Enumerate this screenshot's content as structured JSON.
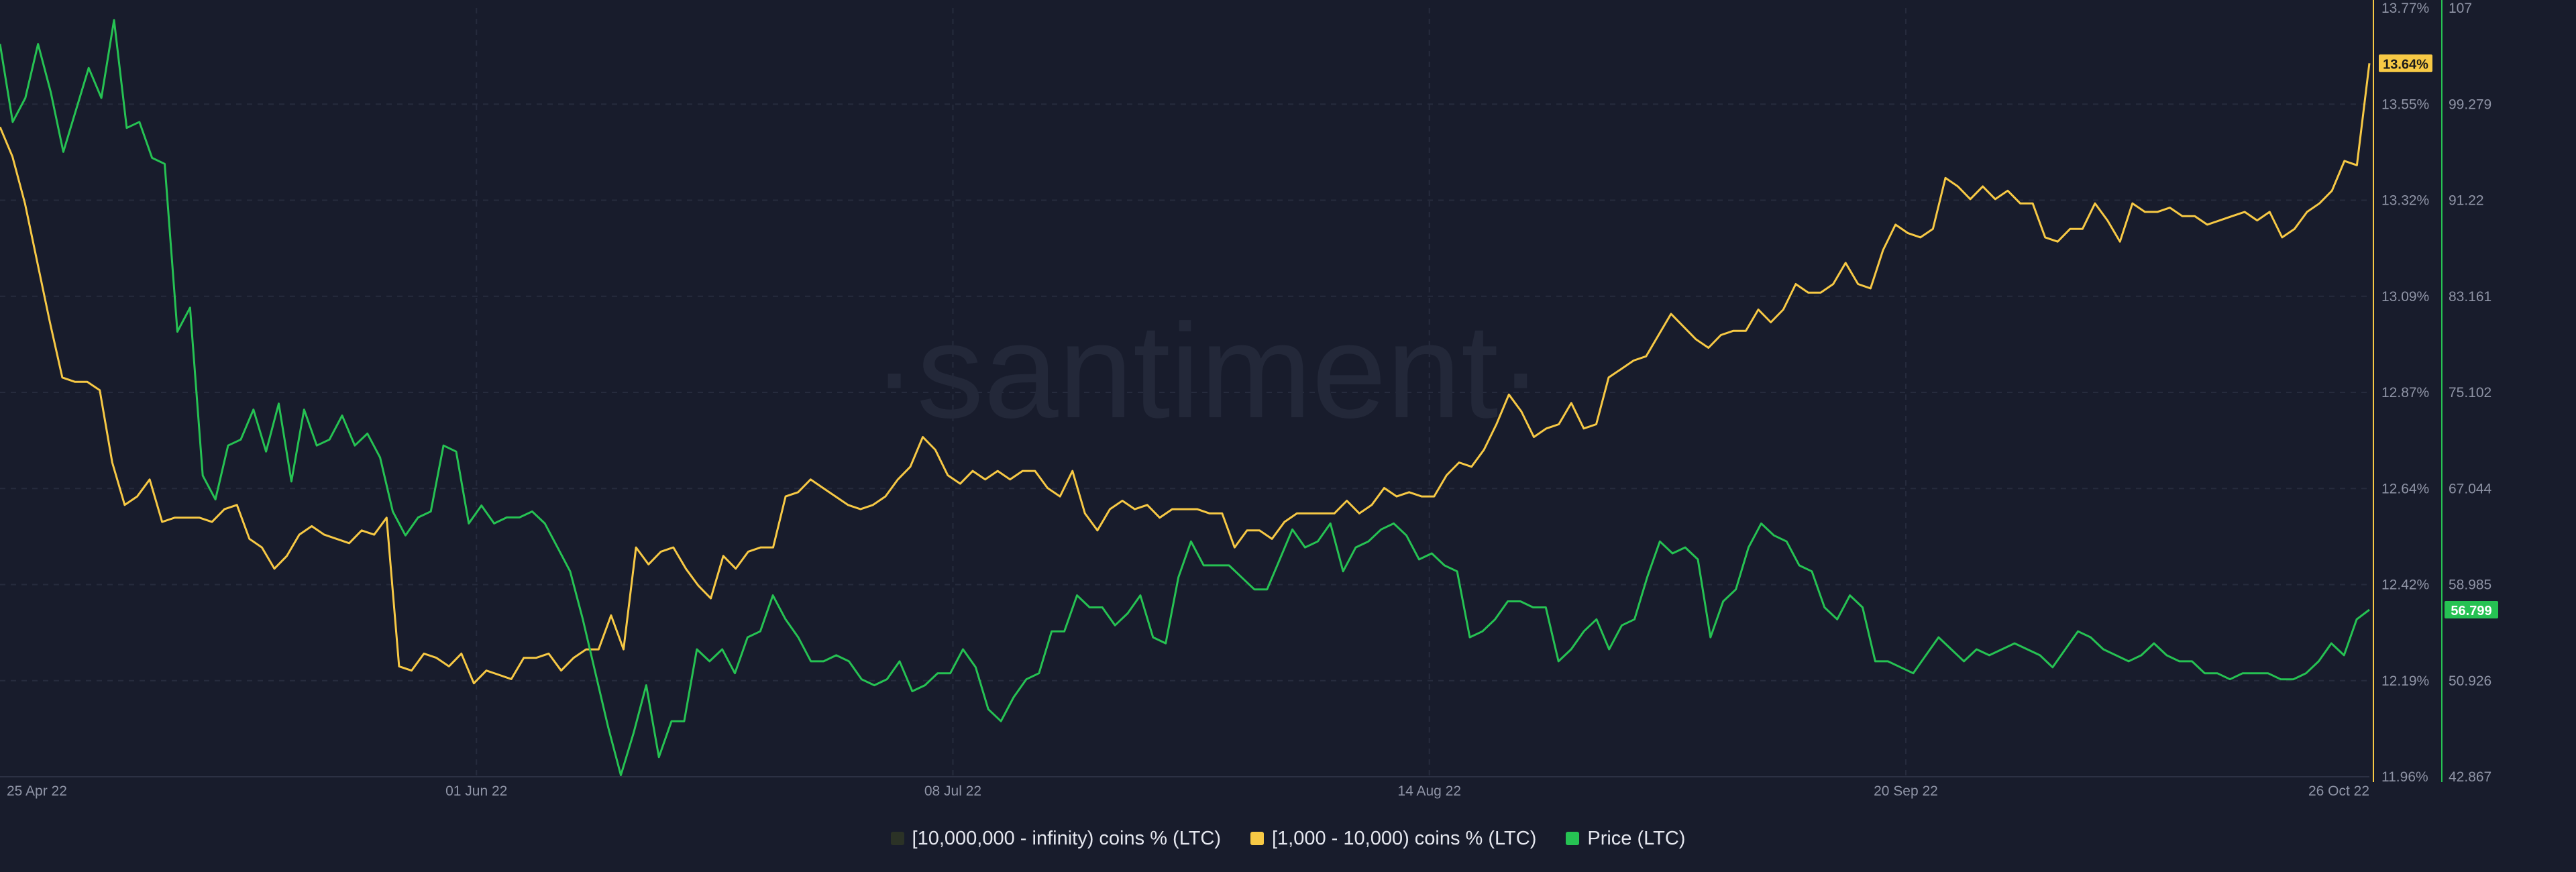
{
  "watermark": "·santiment·",
  "legend": [
    {
      "label": "[10,000,000 - infinity) coins % (LTC)",
      "color": "#2b3226"
    },
    {
      "label": "[1,000 - 10,000) coins % (LTC)",
      "color": "#f7c945"
    },
    {
      "label": "Price (LTC)",
      "color": "#26c253"
    }
  ],
  "chart_data": {
    "type": "line",
    "x_range": [
      "2022-04-25",
      "2022-10-26"
    ],
    "x_ticks": [
      {
        "date": "2022-04-25",
        "label": "25 Apr 22"
      },
      {
        "date": "2022-06-01",
        "label": "01 Jun 22"
      },
      {
        "date": "2022-07-08",
        "label": "08 Jul 22"
      },
      {
        "date": "2022-08-14",
        "label": "14 Aug 22"
      },
      {
        "date": "2022-09-20",
        "label": "20 Sep 22"
      },
      {
        "date": "2022-10-26",
        "label": "26 Oct 22"
      }
    ],
    "y_left": {
      "range": [
        11.96,
        13.77
      ],
      "ticks": [
        "13.77%",
        "13.55%",
        "13.32%",
        "13.09%",
        "12.87%",
        "12.64%",
        "12.42%",
        "12.19%",
        "11.96%"
      ],
      "current_label": "13.64%",
      "current_value": 13.64,
      "color": "#f7c945"
    },
    "y_right": {
      "range": [
        42.867,
        107
      ],
      "ticks": [
        "107",
        "99.279",
        "91.22",
        "83.161",
        "75.102",
        "67.044",
        "58.985",
        "50.926",
        "42.867"
      ],
      "current_label": "56.799",
      "current_value": 56.799,
      "color": "#26c253"
    },
    "grid": true,
    "series": [
      {
        "name": "[1,000 - 10,000) coins % (LTC)",
        "axis": "left",
        "color": "#f7c945",
        "x_start": "2022-04-25",
        "x_end": "2022-10-26",
        "values": [
          13.49,
          13.42,
          13.31,
          13.17,
          13.03,
          12.9,
          12.89,
          12.89,
          12.87,
          12.7,
          12.6,
          12.62,
          12.66,
          12.56,
          12.57,
          12.57,
          12.57,
          12.56,
          12.59,
          12.6,
          12.52,
          12.5,
          12.45,
          12.48,
          12.53,
          12.55,
          12.53,
          12.52,
          12.51,
          12.54,
          12.53,
          12.57,
          12.22,
          12.21,
          12.25,
          12.24,
          12.22,
          12.25,
          12.18,
          12.21,
          12.2,
          12.19,
          12.24,
          12.24,
          12.25,
          12.21,
          12.24,
          12.26,
          12.26,
          12.34,
          12.26,
          12.5,
          12.46,
          12.49,
          12.5,
          12.45,
          12.41,
          12.38,
          12.48,
          12.45,
          12.49,
          12.5,
          12.5,
          12.62,
          12.63,
          12.66,
          12.64,
          12.62,
          12.6,
          12.59,
          12.6,
          12.62,
          12.66,
          12.69,
          12.76,
          12.73,
          12.67,
          12.65,
          12.68,
          12.66,
          12.68,
          12.66,
          12.68,
          12.68,
          12.64,
          12.62,
          12.68,
          12.58,
          12.54,
          12.59,
          12.61,
          12.59,
          12.6,
          12.57,
          12.59,
          12.59,
          12.59,
          12.58,
          12.58,
          12.5,
          12.54,
          12.54,
          12.52,
          12.56,
          12.58,
          12.58,
          12.58,
          12.58,
          12.61,
          12.58,
          12.6,
          12.64,
          12.62,
          12.63,
          12.62,
          12.62,
          12.67,
          12.7,
          12.69,
          12.73,
          12.79,
          12.86,
          12.82,
          12.76,
          12.78,
          12.79,
          12.84,
          12.78,
          12.79,
          12.9,
          12.92,
          12.94,
          12.95,
          13.0,
          13.05,
          13.02,
          12.99,
          12.97,
          13.0,
          13.01,
          13.01,
          13.06,
          13.03,
          13.06,
          13.12,
          13.1,
          13.1,
          13.12,
          13.17,
          13.12,
          13.11,
          13.2,
          13.26,
          13.24,
          13.23,
          13.25,
          13.37,
          13.35,
          13.32,
          13.35,
          13.32,
          13.34,
          13.31,
          13.31,
          13.23,
          13.22,
          13.25,
          13.25,
          13.31,
          13.27,
          13.22,
          13.31,
          13.29,
          13.29,
          13.3,
          13.28,
          13.28,
          13.26,
          13.27,
          13.28,
          13.29,
          13.27,
          13.29,
          13.23,
          13.25,
          13.29,
          13.31,
          13.34,
          13.41,
          13.4,
          13.64
        ]
      },
      {
        "name": "Price (LTC)",
        "axis": "right",
        "color": "#26c253",
        "x_start": "2022-04-25",
        "x_end": "2022-10-26",
        "values": [
          104.0,
          97.5,
          99.5,
          104.0,
          100.0,
          95.0,
          98.5,
          102.0,
          99.5,
          106.0,
          97.0,
          97.5,
          94.5,
          94.0,
          80.0,
          82.0,
          68.0,
          66.0,
          70.5,
          71.0,
          73.5,
          70.0,
          74.0,
          67.5,
          73.5,
          70.5,
          71.0,
          73.0,
          70.5,
          71.5,
          69.5,
          65.0,
          63.0,
          64.5,
          65.0,
          70.5,
          70.0,
          64.0,
          65.5,
          64.0,
          64.5,
          64.5,
          65.0,
          64.0,
          62.0,
          60.0,
          56.0,
          51.5,
          47.0,
          43.0,
          46.5,
          50.5,
          44.5,
          47.5,
          47.5,
          53.5,
          52.5,
          53.5,
          51.5,
          54.5,
          55.0,
          58.0,
          56.0,
          54.5,
          52.5,
          52.5,
          53.0,
          52.5,
          51.0,
          50.5,
          51.0,
          52.5,
          50.0,
          50.5,
          51.5,
          51.5,
          53.5,
          52.0,
          48.5,
          47.5,
          49.5,
          51.0,
          51.5,
          55.0,
          55.0,
          58.0,
          57.0,
          57.0,
          55.5,
          56.5,
          58.0,
          54.5,
          54.0,
          59.5,
          62.5,
          60.5,
          60.5,
          60.5,
          59.5,
          58.5,
          58.5,
          61.0,
          63.5,
          62.0,
          62.5,
          64.0,
          60.0,
          62.0,
          62.5,
          63.5,
          64.0,
          63.0,
          61.0,
          61.5,
          60.5,
          60.0,
          54.5,
          55.0,
          56.0,
          57.5,
          57.5,
          57.0,
          57.0,
          52.5,
          53.5,
          55.0,
          56.0,
          53.5,
          55.5,
          56.0,
          59.5,
          62.5,
          61.5,
          62.0,
          61.0,
          54.5,
          57.5,
          58.5,
          62.0,
          64.0,
          63.0,
          62.5,
          60.5,
          60.0,
          57.0,
          56.0,
          58.0,
          57.0,
          52.5,
          52.5,
          52.0,
          51.5,
          53.0,
          54.5,
          53.5,
          52.5,
          53.5,
          53.0,
          53.5,
          54.0,
          53.5,
          53.0,
          52.0,
          53.5,
          55.0,
          54.5,
          53.5,
          53.0,
          52.5,
          53.0,
          54.0,
          53.0,
          52.5,
          52.5,
          51.5,
          51.5,
          51.0,
          51.5,
          51.5,
          51.5,
          51.0,
          51.0,
          51.5,
          52.5,
          54.0,
          53.0,
          56.0,
          56.8
        ]
      }
    ]
  }
}
